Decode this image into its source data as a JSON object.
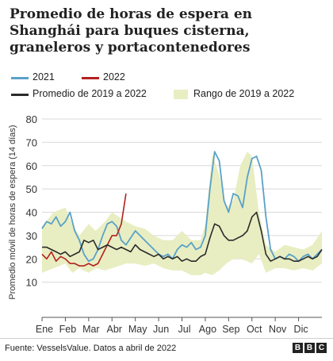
{
  "title": "Promedio de horas de espera en Shanghái para buques cisterna, graneleros y portacontenedores",
  "legend": {
    "s2021": "2021",
    "s2022": "2022",
    "avg": "Promedio de 2019 a 2022",
    "range": "Rango de 2019 a 2022"
  },
  "colors": {
    "s2021": "#5aa1c9",
    "s2022": "#b52020",
    "avg": "#2b2b2b",
    "range": "#e8eec2",
    "grid": "#d9d9d9"
  },
  "footer": {
    "source": "Fuente: VesselsValue. Datos a abril de 2022",
    "logo": [
      "B",
      "B",
      "C"
    ]
  },
  "chart_data": {
    "type": "line",
    "title": "Promedio de horas de espera en Shanghái para buques cisterna, graneleros y portacontenedores",
    "ylabel": "Promedio móvil de horas de espera (14 días)",
    "xlabel": "",
    "ylim": [
      0,
      80
    ],
    "yticks": [
      10,
      20,
      30,
      40,
      50,
      60,
      70,
      80
    ],
    "xlim": [
      0,
      12
    ],
    "months": [
      "Ene",
      "Feb",
      "Mar",
      "Abr",
      "May",
      "Jun",
      "Jul",
      "Ago",
      "Sep",
      "Oct",
      "Nov",
      "Dic"
    ],
    "grid": true,
    "legend_position": "top",
    "range_2019_2022": {
      "x": [
        0,
        0.5,
        1,
        1.3,
        1.6,
        2.0,
        2.3,
        2.7,
        3.0,
        3.3,
        3.6,
        4.0,
        4.4,
        4.8,
        5.2,
        5.6,
        6.0,
        6.4,
        6.8,
        7.0,
        7.3,
        7.6,
        7.9,
        8.2,
        8.5,
        8.8,
        9.0,
        9.3,
        9.6,
        10.0,
        10.4,
        10.8,
        11.2,
        11.6,
        12.0
      ],
      "low": [
        14,
        16,
        18,
        14,
        16,
        14,
        16,
        15,
        16,
        17,
        18,
        18,
        17,
        18,
        16,
        15,
        15,
        13,
        13,
        14,
        13,
        15,
        18,
        20,
        20,
        19,
        18,
        22,
        14,
        16,
        16,
        15,
        16,
        15,
        18
      ],
      "high": [
        34,
        40,
        42,
        35,
        30,
        35,
        32,
        36,
        40,
        38,
        36,
        34,
        33,
        30,
        28,
        28,
        32,
        28,
        28,
        35,
        65,
        56,
        42,
        45,
        60,
        66,
        64,
        40,
        26,
        23,
        26,
        25,
        24,
        26,
        32
      ]
    },
    "series": [
      {
        "name": "2021",
        "x": [
          0,
          0.2,
          0.4,
          0.6,
          0.8,
          1.0,
          1.2,
          1.4,
          1.6,
          1.8,
          2.0,
          2.2,
          2.4,
          2.6,
          2.8,
          3.0,
          3.2,
          3.4,
          3.6,
          3.8,
          4.0,
          4.2,
          4.4,
          4.6,
          4.8,
          5.0,
          5.2,
          5.4,
          5.6,
          5.8,
          6.0,
          6.2,
          6.4,
          6.6,
          6.8,
          7.0,
          7.2,
          7.4,
          7.6,
          7.8,
          8.0,
          8.2,
          8.4,
          8.6,
          8.8,
          9.0,
          9.2,
          9.4,
          9.6,
          9.8,
          10.0,
          10.2,
          10.4,
          10.6,
          10.8,
          11.0,
          11.2,
          11.4,
          11.6,
          11.8,
          12.0
        ],
        "y": [
          33,
          36,
          35,
          38,
          34,
          36,
          40,
          32,
          28,
          22,
          19,
          20,
          24,
          30,
          35,
          36,
          34,
          28,
          26,
          29,
          32,
          30,
          28,
          26,
          24,
          22,
          21,
          22,
          20,
          24,
          26,
          25,
          27,
          24,
          25,
          30,
          50,
          66,
          62,
          45,
          40,
          48,
          47,
          42,
          55,
          63,
          64,
          58,
          38,
          24,
          20,
          21,
          20,
          22,
          21,
          19,
          21,
          22,
          20,
          22,
          24
        ]
      },
      {
        "name": "2022",
        "x": [
          0,
          0.2,
          0.4,
          0.6,
          0.8,
          1.0,
          1.2,
          1.4,
          1.6,
          1.8,
          2.0,
          2.2,
          2.4,
          2.6,
          2.8,
          3.0,
          3.2,
          3.4,
          3.6
        ],
        "y": [
          22,
          20,
          23,
          19,
          21,
          20,
          18,
          18,
          17,
          17,
          18,
          17,
          18,
          22,
          26,
          30,
          30,
          35,
          48
        ]
      },
      {
        "name": "Promedio de 2019 a 2022",
        "x": [
          0,
          0.2,
          0.4,
          0.6,
          0.8,
          1.0,
          1.2,
          1.4,
          1.6,
          1.8,
          2.0,
          2.2,
          2.4,
          2.6,
          2.8,
          3.0,
          3.2,
          3.4,
          3.6,
          3.8,
          4.0,
          4.2,
          4.4,
          4.6,
          4.8,
          5.0,
          5.2,
          5.4,
          5.6,
          5.8,
          6.0,
          6.2,
          6.4,
          6.6,
          6.8,
          7.0,
          7.2,
          7.4,
          7.6,
          7.8,
          8.0,
          8.2,
          8.4,
          8.6,
          8.8,
          9.0,
          9.2,
          9.4,
          9.6,
          9.8,
          10.0,
          10.2,
          10.4,
          10.6,
          10.8,
          11.0,
          11.2,
          11.4,
          11.6,
          11.8,
          12.0
        ],
        "y": [
          25,
          25,
          24,
          23,
          22,
          23,
          21,
          22,
          23,
          28,
          27,
          28,
          24,
          25,
          26,
          25,
          24,
          25,
          24,
          23,
          26,
          24,
          23,
          22,
          21,
          22,
          20,
          21,
          20,
          21,
          19,
          20,
          19,
          19,
          21,
          22,
          29,
          35,
          34,
          30,
          28,
          28,
          29,
          30,
          32,
          38,
          40,
          32,
          22,
          19,
          20,
          21,
          20,
          20,
          19,
          19,
          20,
          21,
          20,
          21,
          24
        ]
      }
    ]
  }
}
